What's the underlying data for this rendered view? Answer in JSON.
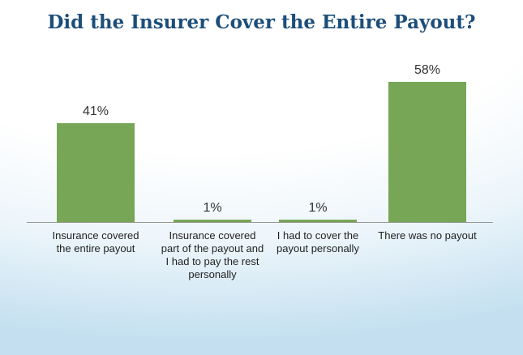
{
  "chart_data": {
    "type": "bar",
    "title": "Did the Insurer Cover the Entire Payout?",
    "categories": [
      "Insurance covered the entire payout",
      "Insurance covered part of the payout and I had to pay the rest personally",
      "I had to cover the payout personally",
      "There was no payout"
    ],
    "values": [
      41,
      1,
      1,
      58
    ],
    "value_labels": [
      "41%",
      "1%",
      "1%",
      "58%"
    ],
    "color": "#76a656"
  }
}
